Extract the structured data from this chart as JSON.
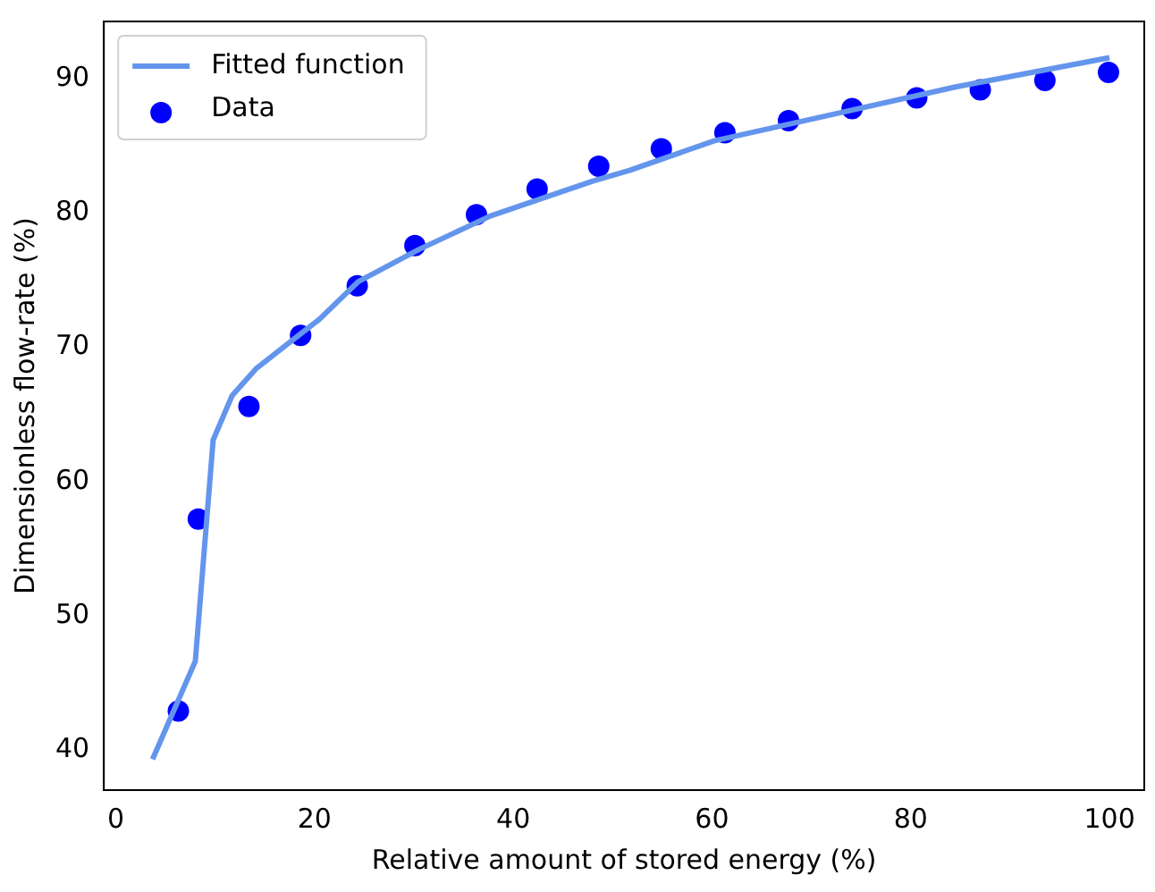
{
  "chart_data": {
    "type": "scatter",
    "xlabel": "Relative amount of stored energy (%)",
    "ylabel": "Dimensionless flow-rate (%)",
    "xlim": [
      -1.2,
      103.5
    ],
    "ylim": [
      37,
      94.3
    ],
    "xticks": [
      0,
      20,
      40,
      60,
      80,
      100
    ],
    "yticks": [
      40,
      50,
      60,
      70,
      80,
      90
    ],
    "grid": false,
    "legend": "top left",
    "series": [
      {
        "name": "Fitted function",
        "type": "line",
        "color": "#6495ed",
        "marker": "none",
        "x": [
          3.7,
          8.0,
          9.8,
          11.7,
          14.1,
          17.2,
          20.5,
          24.4,
          30.5,
          37.7,
          48.0,
          51.7,
          60.2,
          72.3,
          84.4,
          100
        ],
        "values": [
          39.3,
          46.6,
          63.1,
          66.4,
          68.4,
          70.2,
          72.1,
          74.9,
          77.3,
          79.8,
          82.4,
          83.2,
          85.4,
          87.4,
          89.4,
          91.6
        ]
      },
      {
        "name": "Data",
        "color": "#0000ff",
        "marker": "circle",
        "x": [
          6.3,
          8.3,
          13.4,
          18.6,
          24.3,
          30.1,
          36.3,
          42.4,
          48.6,
          54.9,
          61.3,
          67.7,
          74.1,
          80.6,
          87.0,
          93.5,
          99.9
        ],
        "values": [
          42.9,
          57.2,
          65.6,
          70.9,
          74.6,
          77.6,
          79.9,
          81.8,
          83.5,
          84.8,
          86.0,
          86.9,
          87.8,
          88.6,
          89.2,
          89.9,
          90.5
        ]
      }
    ]
  }
}
